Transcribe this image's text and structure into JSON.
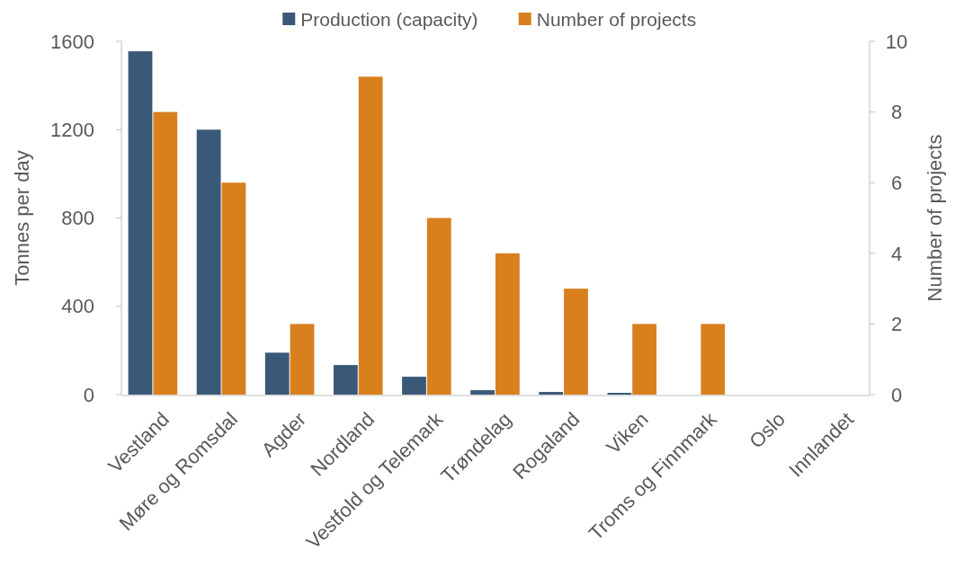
{
  "chart_data": {
    "type": "bar",
    "categories": [
      "Vestland",
      "Møre og Romsdal",
      "Agder",
      "Nordland",
      "Vestfold og Telemark",
      "Trøndelag",
      "Rogaland",
      "Viken",
      "Troms og Finnmark",
      "Oslo",
      "Innlandet"
    ],
    "series": [
      {
        "name": "Production (capacity)",
        "color": "#3a5877",
        "values": [
          1555,
          1200,
          190,
          134,
          81,
          20,
          12,
          8,
          0,
          0,
          0
        ]
      },
      {
        "name": "Number of projects",
        "color": "#d8801e",
        "axis": "y2",
        "values": [
          8,
          6,
          2,
          9,
          5,
          4,
          3,
          2,
          2,
          0,
          0
        ]
      }
    ],
    "ylabel": "Tonnes per day",
    "y2label": "Number of projects",
    "ylim": [
      0,
      1600
    ],
    "yticks": [
      0,
      400,
      800,
      1200,
      1600
    ],
    "y2lim": [
      0,
      10
    ],
    "y2ticks": [
      0,
      2,
      4,
      6,
      8,
      10
    ],
    "legend": "top",
    "grid": false
  }
}
